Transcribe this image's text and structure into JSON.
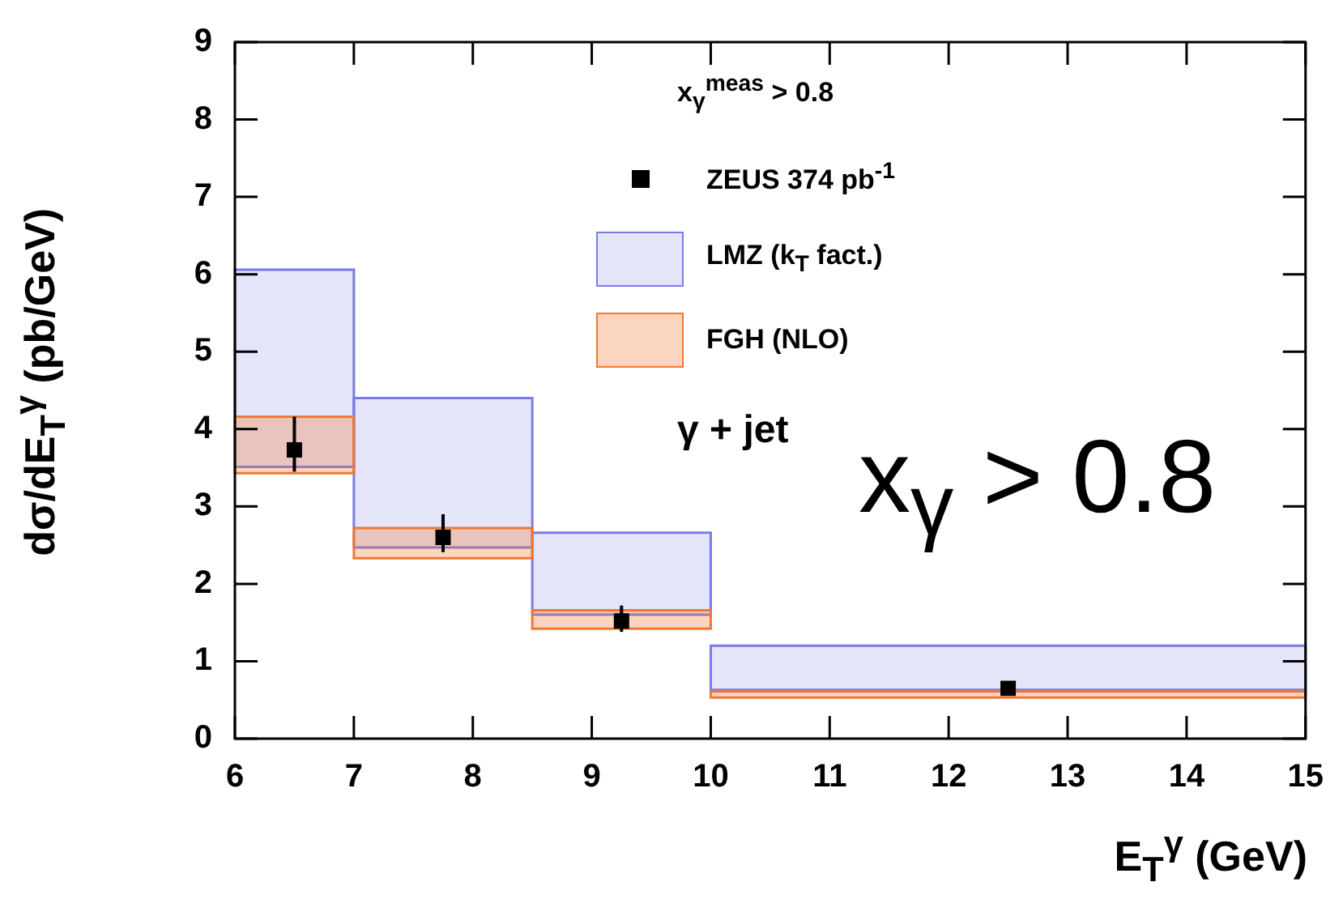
{
  "chart_data": {
    "type": "scatter",
    "xlabel": "E$_{T}$$^{γ}$ (GeV)",
    "ylabel": "dσ/dE$_{T}$$^{γ}$ (pb/GeV)",
    "xlim": [
      6,
      15
    ],
    "xticks": [
      6,
      7,
      8,
      9,
      10,
      11,
      12,
      13,
      14,
      15
    ],
    "ylim": [
      0,
      9
    ],
    "yticks": [
      0,
      1,
      2,
      3,
      4,
      5,
      6,
      7,
      8,
      9
    ],
    "marker": "square",
    "legend": "top right",
    "annotations": [
      "x$_{γ}$$^{meas}$ > 0.8",
      "γ + jet",
      "x$_{γ}$ > 0.8"
    ],
    "series": [
      {
        "name": "ZEUS 374 pb$^{-1}$",
        "color": "#000000",
        "x": [
          6.5,
          7.75,
          9.25,
          12.5
        ],
        "values": [
          3.73,
          2.6,
          1.52,
          0.65
        ],
        "errors": [
          [
            3.45,
            4.16
          ],
          [
            2.41,
            2.9
          ],
          [
            1.38,
            1.72
          ],
          null
        ]
      },
      {
        "name": "LMZ (k$_{T}$ fact.)",
        "type": "histogram",
        "color": "#7b7be8",
        "bins": [
          6,
          7,
          8.5,
          10,
          15
        ],
        "base": [
          3.51,
          2.47,
          1.6,
          0.63
        ],
        "values": [
          2.55,
          1.93,
          1.06,
          0.57
        ]
      },
      {
        "name": "FGH (NLO)",
        "type": "histogram",
        "color": "#f07830",
        "bins": [
          6,
          7,
          8.5,
          10,
          15
        ],
        "base": [
          3.43,
          2.33,
          1.42,
          0.53
        ],
        "values": [
          0.73,
          0.39,
          0.24,
          0.08
        ]
      }
    ]
  }
}
